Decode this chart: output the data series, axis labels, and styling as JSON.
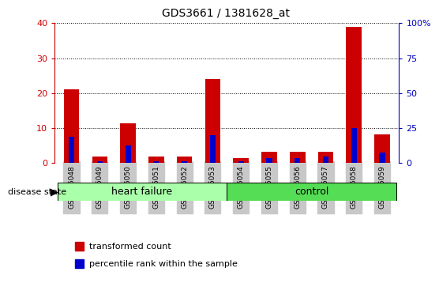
{
  "title": "GDS3661 / 1381628_at",
  "samples": [
    "GSM476048",
    "GSM476049",
    "GSM476050",
    "GSM476051",
    "GSM476052",
    "GSM476053",
    "GSM476054",
    "GSM476055",
    "GSM476056",
    "GSM476057",
    "GSM476058",
    "GSM476059"
  ],
  "transformed_count": [
    21,
    1.8,
    11.5,
    1.8,
    2.0,
    24,
    1.5,
    3.3,
    3.3,
    3.3,
    39,
    8.2
  ],
  "percentile_rank": [
    19,
    1.25,
    12.5,
    1.25,
    1.25,
    20.0,
    1.25,
    3.75,
    3.75,
    5.0,
    25.0,
    7.5
  ],
  "ylim_left": [
    0,
    40
  ],
  "ylim_right": [
    0,
    100
  ],
  "yticks_left": [
    0,
    10,
    20,
    30,
    40
  ],
  "yticks_right": [
    0,
    25,
    50,
    75,
    100
  ],
  "ytick_labels_right": [
    "0",
    "25",
    "50",
    "75",
    "100%"
  ],
  "bar_color_red": "#CC0000",
  "bar_color_blue": "#0000CC",
  "hf_bg": "#AAFFAA",
  "ctrl_bg": "#55DD55",
  "label_bg": "#C8C8C8",
  "left_axis_color": "#CC0000",
  "right_axis_color": "#0000BB",
  "grid_color": "#000000",
  "bar_width": 0.55,
  "blue_bar_width": 0.2,
  "legend_red_label": "transformed count",
  "legend_blue_label": "percentile rank within the sample",
  "disease_state_label": "disease state",
  "hf_label": "heart failure",
  "ctrl_label": "control"
}
